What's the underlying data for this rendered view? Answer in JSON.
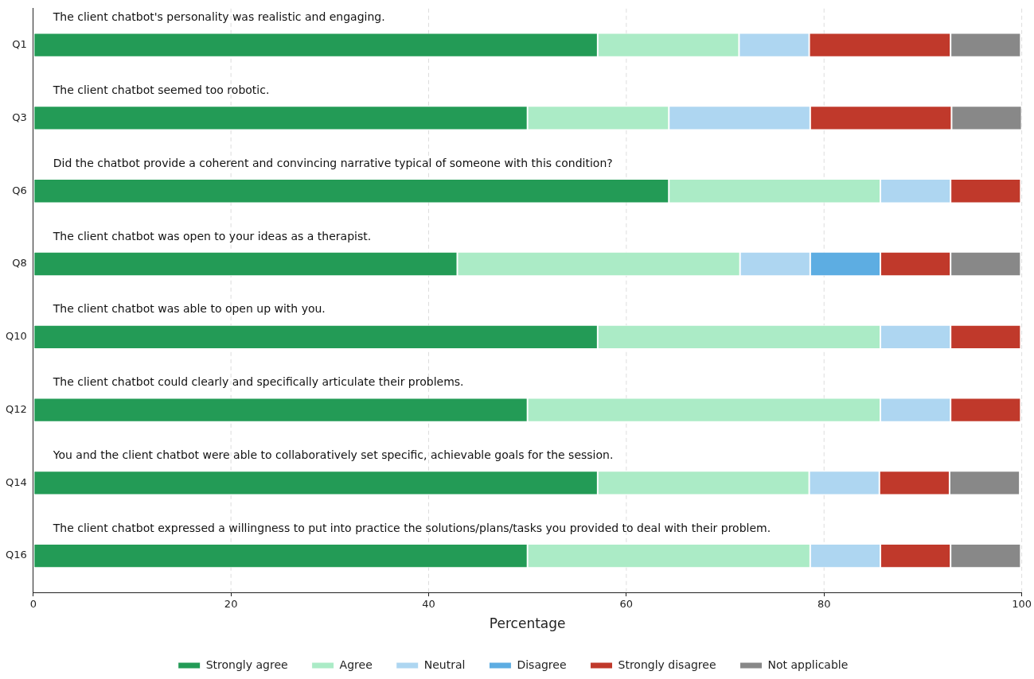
{
  "chart_data": {
    "type": "bar",
    "orientation": "horizontal",
    "stacked": true,
    "categories": [
      "Q1",
      "Q3",
      "Q6",
      "Q8",
      "Q10",
      "Q12",
      "Q14",
      "Q16"
    ],
    "series": [
      {
        "name": "Strongly agree",
        "color": "#239b56",
        "values": [
          57.1,
          50.0,
          64.3,
          42.9,
          57.1,
          50.0,
          57.1,
          50.0
        ]
      },
      {
        "name": "Agree",
        "color": "#abebc6",
        "values": [
          14.3,
          14.3,
          21.4,
          28.6,
          28.6,
          35.7,
          21.4,
          28.6
        ]
      },
      {
        "name": "Neutral",
        "color": "#aed6f1",
        "values": [
          7.1,
          14.3,
          7.1,
          7.1,
          7.1,
          7.1,
          7.1,
          7.1
        ]
      },
      {
        "name": "Disagree",
        "color": "#5dade2",
        "values": [
          0,
          0,
          0,
          7.1,
          0,
          0,
          0,
          0
        ]
      },
      {
        "name": "Strongly disagree",
        "color": "#c0392b",
        "values": [
          14.3,
          14.3,
          7.1,
          7.1,
          7.1,
          7.1,
          7.1,
          7.1
        ]
      },
      {
        "name": "Not applicable",
        "color": "#888888",
        "values": [
          7.1,
          7.1,
          0,
          7.1,
          0,
          0,
          7.1,
          7.1
        ]
      }
    ],
    "xlabel": "Percentage",
    "xlim": [
      0,
      100
    ],
    "xticks": [
      0,
      20,
      40,
      60,
      80,
      100
    ],
    "grid": "x",
    "legend": "bottom",
    "annotations": [
      "The client chatbot's personality was realistic and engaging.",
      "The client chatbot seemed too robotic.",
      "Did the chatbot provide a coherent and convincing narrative typical of someone with this condition?",
      "The client chatbot was open to your ideas as a therapist.",
      "The client chatbot was able to open up with you.",
      "The client chatbot could clearly and specifically articulate their problems.",
      "You and the client chatbot were able to collaboratively set specific, achievable goals for the session.",
      "The client chatbot expressed a willingness to put into practice the solutions/plans/tasks you provided to deal with their problem."
    ]
  }
}
